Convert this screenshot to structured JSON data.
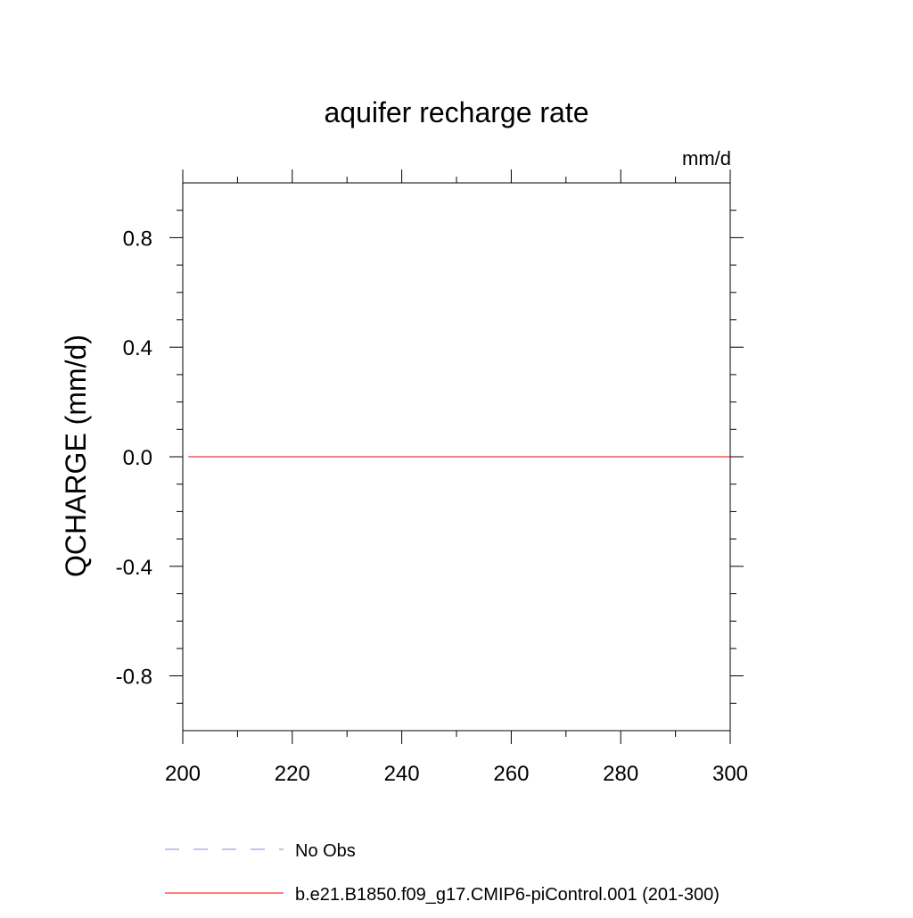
{
  "chart_data": {
    "type": "line",
    "title": "aquifer recharge rate",
    "units_label": "mm/d",
    "ylabel": "QCHARGE  (mm/d)",
    "xlabel": "",
    "xlim": [
      200,
      300
    ],
    "ylim": [
      -1.0,
      1.0
    ],
    "x_ticks": [
      200,
      220,
      240,
      260,
      280,
      300
    ],
    "x_tick_labels": [
      "200",
      "220",
      "240",
      "260",
      "280",
      "300"
    ],
    "y_ticks": [
      -0.8,
      -0.4,
      0.0,
      0.4,
      0.8
    ],
    "y_tick_labels": [
      "-0.8",
      "-0.4",
      "0.0",
      "0.4",
      "0.8"
    ],
    "grid": false,
    "legend_position": "bottom",
    "series": [
      {
        "name": "No Obs",
        "style": "dashed",
        "color": "#8a8ad8",
        "x": [],
        "y": []
      },
      {
        "name": "b.e21.B1850.f09_g17.CMIP6-piControl.001 (201-300)",
        "style": "solid",
        "color": "#ff0000",
        "x": [
          201,
          300
        ],
        "y": [
          0.0,
          0.0
        ]
      }
    ]
  }
}
